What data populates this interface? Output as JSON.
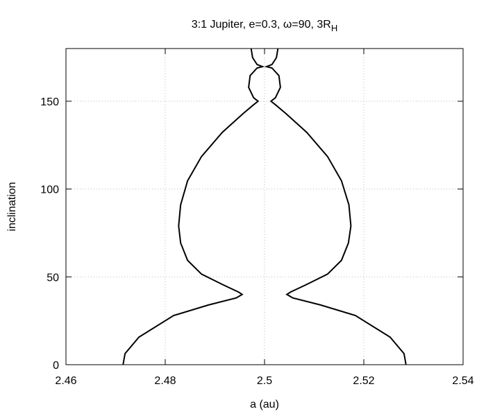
{
  "chart_data": {
    "type": "line",
    "title": "3:1 Jupiter, e=0.3, ω=90, 3R",
    "title_subscript": "H",
    "x_label": "a (au)",
    "y_label": "inclination",
    "xlim": [
      2.46,
      2.54
    ],
    "xticks": [
      2.46,
      2.48,
      2.5,
      2.52,
      2.54
    ],
    "ylim": [
      0,
      180
    ],
    "yticks": [
      0,
      50,
      100,
      150
    ],
    "grid": true,
    "series": [
      {
        "color": "#000000",
        "x": [
          2.4715,
          2.4719,
          2.4747,
          2.4817,
          2.4887,
          2.4943,
          2.4955,
          2.4948,
          2.4915,
          2.4873,
          2.4845,
          2.4831,
          2.4827,
          2.4831,
          2.4845,
          2.4873,
          2.4915,
          2.4957,
          2.4978,
          2.4987,
          2.4978,
          2.4968,
          2.4971,
          2.4985,
          2.4996,
          2.4985,
          2.4976,
          2.4973
        ],
        "values": [
          0,
          6.3,
          15.7,
          28,
          34,
          38,
          40,
          41.3,
          45.7,
          51.6,
          59.4,
          69.3,
          79,
          91,
          104.7,
          118.5,
          132.3,
          143,
          148,
          150,
          152,
          157.9,
          164.6,
          168.9,
          169.7,
          170.9,
          174.8,
          180
        ]
      },
      {
        "color": "#000000",
        "x": [
          2.5285,
          2.5281,
          2.5253,
          2.5183,
          2.5113,
          2.5057,
          2.5045,
          2.5052,
          2.5085,
          2.5127,
          2.5155,
          2.5169,
          2.5174,
          2.517,
          2.5155,
          2.5127,
          2.5085,
          2.5043,
          2.5022,
          2.5013,
          2.5022,
          2.5032,
          2.5029,
          2.5015,
          2.5004,
          2.5015,
          2.5024,
          2.5027
        ],
        "values": [
          0,
          6.3,
          15.7,
          28,
          34,
          38,
          40,
          41.3,
          45.7,
          51.6,
          59.4,
          69.3,
          79,
          91,
          104.7,
          118.5,
          132.3,
          143,
          148,
          150,
          152,
          157.9,
          164.6,
          168.9,
          169.7,
          170.9,
          174.8,
          180
        ]
      }
    ]
  }
}
